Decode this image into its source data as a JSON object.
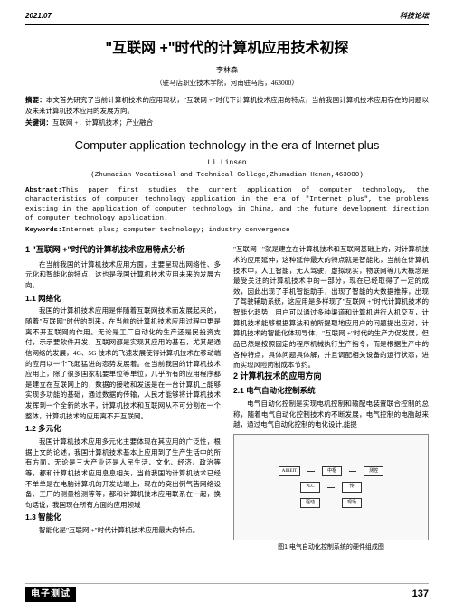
{
  "header": {
    "date": "2021.07",
    "section": "科技论坛"
  },
  "title_cn": "\"互联网 +\"时代的计算机应用技术初探",
  "author_cn": "李林森",
  "affiliation_cn": "（驻马店职业技术学院，河南驻马店，463000）",
  "abstract_cn_label": "摘要：",
  "abstract_cn": "本文首先研究了当前计算机技术的应用现状，\"互联网 +\"时代下计算机技术应用的特点，当前我国计算机技术应用存在的问题以及未来计算机技术应用的发展方向。",
  "keywords_cn_label": "关键词：",
  "keywords_cn": "互联网 +；计算机技术；产业融合",
  "title_en": "Computer application technology in the era of Internet plus",
  "author_en": "Li Linsen",
  "affiliation_en": "(Zhumadian Vocational and Technical College,Zhumadian Henan,463000)",
  "abstract_en_label": "Abstract:",
  "abstract_en": "This paper first studies the current application of computer technology, the characteristics of computer technology application in the era of \"Internet plus\", the problems existing in the application of computer technology in China, and the future development direction of computer technology application.",
  "keywords_en_label": "Keywords:",
  "keywords_en": "Internet plus; computer technology; industry convergence",
  "left_col": {
    "s1_h": "1 \"互联网 +\"时代的计算机技术应用特点分析",
    "s1_p1": "在当前我国的计算机技术应用方面，主要呈现出网络性、多元化和智能化的特点，这也是我国计算机技术应用未来的发展方向。",
    "s11_h": "1.1 网络化",
    "s11_p1": "我国的计算机技术应用是伴随着互联网技术而发展起来的，随着\"互联网\"时代的到来，在当前的计算机技术应用过程中更是离不开互联网的作用。无论是工厂自动化的生产还是民投资支付，示示要软件开发，互联网都是实现其应用的基石，尤其是通信网络的发展，4G、5G 技术的飞速发展使得计算机技术在移动端的应用以一个飞起猛进的态势发展着。在当前我国的计算机技术应用上，除了很多国家机要单位等单位，几乎所有的应用程序都是建立在互联网上的，数据的接收和发送是在一台计算机上能够实现多功能的基础，通过数据的传输，人民才能够将计算机技术发挥到一个全新的水平，计算机技术和互联网从不可分割在一个整体，计算机技术的应用离不开互联网。",
    "s12_h": "1.2 多元化",
    "s12_p1": "我国计算机技术应用多元化主要体现在其应用的广泛性，根据上文的论述，我国计算机技术基本上应用到了生产生活中的所有方面，无论是三大产业还是人民生活、文化、经济、政治等等，都和计算机技术应用息息相关，当前我国的计算机技术已经不单单是在电脑计算机的开发站端上，现在的突出例气告网络设备、工厂的测量检测等等，都和计算机技术应用联系在一起，换句话说，我国现在所有方面的应用领域",
    "s13_h": "1.3 智能化",
    "s13_p1": "智能化是\"互联网 +\"时代计算机技术应用最大的特点。"
  },
  "right_col": {
    "s2_p1": "\"互联网 +\"就是建立在计算机技术和互联网基础上的，对计算机技术的应用延伸，这种延伸最大的特点就是智能化，当前在计算机技术中，人工智能，无人驾驶，虚拟现实，物联网等几大概念是最受关注的计算机技术中的一部分，现在已经取得了一定的成效，因此出现了手机智能助手，出现了智能的大数据推荐，出现了驾驶辅助系统，这应用是多样现了\"互联网 +\"时代计算机技术的智能化趋势，用户可以通过多种渠道和计算机进行人机交互，计算机技术能够根据算法和前所提取地应用户的问题提出应对，计算机技术的智能化体现导体，\"互联网 +\"时代的生产力促发展，但品已然是按照固定的程序机械执行生产指令，而是根据生产中的各种特点，具体问题具体解，并且调配相关设备的运行状态，进而实现风险防制成本节约。",
    "s3_h": "2 计算机技术的应用方向",
    "s31_h": "2.1 电气自动化控制系统",
    "s31_p1": "电气自动化控制是实现电机控制和输配电装置联合控制的总称，随着电气自动化控制技术的不断发展，电气控制的电脑越来越，通过电气自动化控制的电化设计,能提",
    "diagram_caption": "图1 电气自动化控制系统的硬件组成图",
    "diagram_boxes": [
      "AIREIT",
      "中枢",
      "测控",
      "PLC",
      "传",
      "驱动",
      "现场"
    ]
  },
  "footer": {
    "logo": "电子测试",
    "page": "137"
  }
}
